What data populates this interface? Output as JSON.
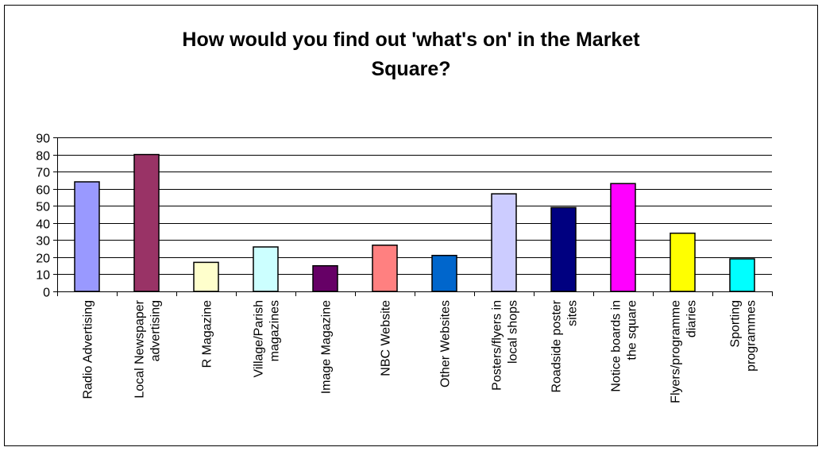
{
  "chart_data": {
    "type": "bar",
    "title_lines": [
      "How would you find out 'what's on' in the Market",
      "Square?"
    ],
    "categories": [
      [
        "Radio Advertising"
      ],
      [
        "Local Newspaper",
        "advertising"
      ],
      [
        "R Magazine"
      ],
      [
        "Village/Parish",
        "magazines"
      ],
      [
        "Image Magazine"
      ],
      [
        "NBC Website"
      ],
      [
        "Other Websites"
      ],
      [
        "Posters/flyers in",
        "local shops"
      ],
      [
        "Roadside poster",
        "sites"
      ],
      [
        "Notice boards in",
        "the square"
      ],
      [
        "Flyers/programme",
        "diaries"
      ],
      [
        "Sporting",
        "programmes"
      ]
    ],
    "values": [
      64,
      80,
      17,
      26,
      15,
      27,
      21,
      57,
      49,
      63,
      34,
      19
    ],
    "colors": [
      "#9999FF",
      "#993366",
      "#FFFFCC",
      "#CCFFFF",
      "#660066",
      "#FF8080",
      "#0066CC",
      "#CCCCFF",
      "#000080",
      "#FF00FF",
      "#FFFF00",
      "#00FFFF"
    ],
    "ylim": [
      0,
      90
    ],
    "yticks": [
      0,
      10,
      20,
      30,
      40,
      50,
      60,
      70,
      80,
      90
    ],
    "grid": true,
    "legend": "none"
  }
}
